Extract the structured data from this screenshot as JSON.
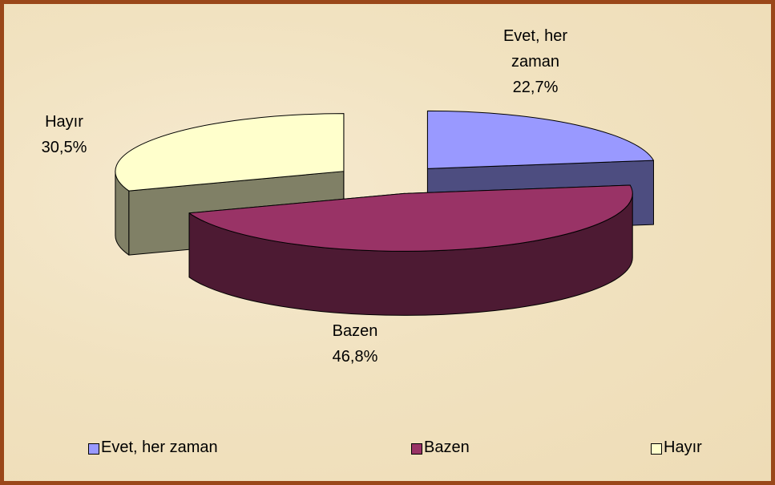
{
  "chart_data": {
    "type": "pie3d",
    "categories": [
      "Evet, her zaman",
      "Bazen",
      "Hayır"
    ],
    "values": [
      22.7,
      46.8,
      30.5
    ],
    "value_labels": [
      "22,7%",
      "46,8%",
      "30,5%"
    ],
    "colors": [
      "#9999ff",
      "#993366",
      "#ffffcc"
    ],
    "legend": "bottom"
  }
}
